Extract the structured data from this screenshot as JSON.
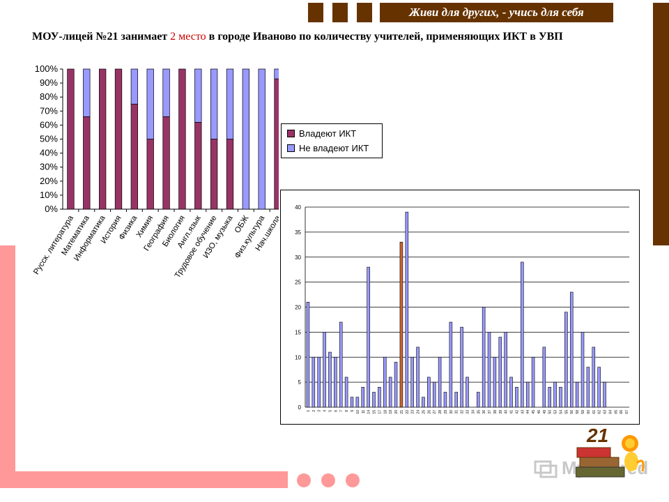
{
  "header": {
    "motto": "Живи для других, - учись для себя",
    "title_before": "МОУ-лицей №21 занимает ",
    "title_highlight": "2 место",
    "title_after": " в городе Иваново по количеству учителей, применяющих ИКТ в УВП"
  },
  "colors": {
    "brown": "#663300",
    "pink": "#ff9999",
    "owns": "#993366",
    "not_owns": "#9999ff",
    "highlight_bar": "#cc6633",
    "title_highlight": "#cc0000"
  },
  "logo": {
    "number": "21"
  },
  "watermark": "MyShared",
  "chart_data": [
    {
      "type": "bar",
      "stacked": true,
      "categories": [
        "Русск. литература",
        "Математика",
        "Информатика",
        "История",
        "Физика",
        "Химия",
        "География",
        "Биология",
        "Англ.язык",
        "Трудовое обучение",
        "ИЗО, музыка",
        "ОБЖ",
        "Физ.культура",
        "Нач.школа"
      ],
      "series": [
        {
          "name": "Владеют ИКТ",
          "color": "#993366",
          "values": [
            100,
            66,
            100,
            100,
            75,
            50,
            66,
            100,
            62,
            50,
            50,
            0,
            0,
            93
          ]
        },
        {
          "name": "Не владеют ИКТ",
          "color": "#9999ff",
          "values": [
            0,
            34,
            0,
            0,
            25,
            50,
            34,
            0,
            38,
            50,
            50,
            100,
            100,
            7
          ]
        }
      ],
      "yticks": [
        "0%",
        "10%",
        "20%",
        "30%",
        "40%",
        "50%",
        "60%",
        "70%",
        "80%",
        "90%",
        "100%"
      ],
      "ylim": [
        0,
        100
      ],
      "legend": "right",
      "grid": false
    },
    {
      "type": "bar",
      "categories": [
        "1",
        "2",
        "3",
        "4",
        "5",
        "6",
        "7",
        "8",
        "9",
        "10",
        "11",
        "14",
        "15",
        "17",
        "18",
        "19",
        "20",
        "21",
        "22",
        "23",
        "24",
        "25",
        "26",
        "27",
        "28",
        "29",
        "30",
        "31",
        "32",
        "33",
        "34",
        "35",
        "36",
        "37",
        "38",
        "39",
        "40",
        "41",
        "42",
        "43",
        "44",
        "45",
        "46",
        "49",
        "50",
        "53",
        "54",
        "55",
        "56",
        "58",
        "59",
        "60",
        "61",
        "62",
        "63",
        "64",
        "65",
        "66",
        "67"
      ],
      "values": [
        21,
        10,
        10,
        15,
        11,
        10,
        17,
        6,
        2,
        2,
        4,
        28,
        3,
        4,
        10,
        6,
        9,
        33,
        39,
        10,
        12,
        2,
        6,
        5,
        10,
        3,
        17,
        3,
        16,
        6,
        0,
        3,
        20,
        15,
        10,
        14,
        15,
        6,
        4,
        29,
        5,
        10,
        0,
        12,
        4,
        5,
        4,
        19,
        23,
        5,
        15,
        8,
        12,
        8,
        5,
        0,
        0,
        0,
        0
      ],
      "highlight_index": 17,
      "yticks": [
        "0",
        "5",
        "10",
        "15",
        "20",
        "25",
        "30",
        "35",
        "40"
      ],
      "ylim": [
        0,
        40
      ],
      "grid": true
    }
  ]
}
